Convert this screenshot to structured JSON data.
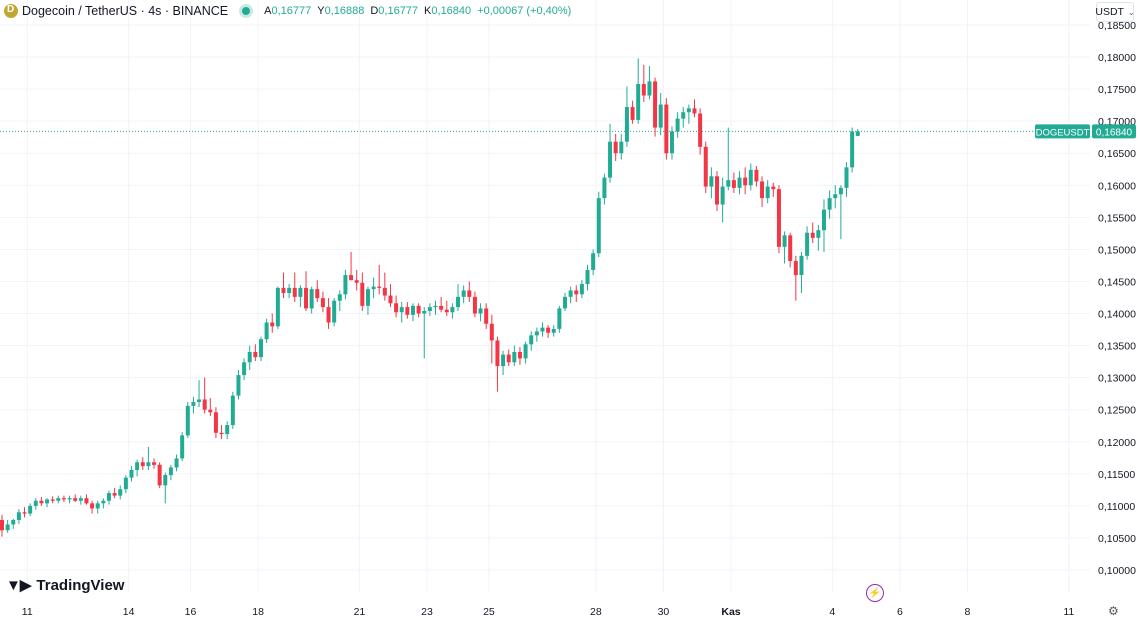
{
  "header": {
    "symbol": "Dogecoin / TetherUS · 4s · BINANCE",
    "ohlc": [
      {
        "k": "A",
        "v": "0,16777"
      },
      {
        "k": "Y",
        "v": "0,16888"
      },
      {
        "k": "D",
        "v": "0,16777"
      },
      {
        "k": "K",
        "v": "0,16840"
      },
      {
        "k": "",
        "v": "+0,00067 (+0,40%)"
      }
    ]
  },
  "currency_selector": "USDT",
  "brand": "TradingView",
  "price_tag": {
    "symbol": "DOGEUSDT",
    "price": "0,16840",
    "color": "#22ab94"
  },
  "colors": {
    "up": "#22ab94",
    "down": "#f23645",
    "grid": "#f0f3fa",
    "text": "#131722"
  },
  "chart_data": {
    "type": "candlestick",
    "ylim": [
      0.1,
      0.185
    ],
    "y_ticks": [
      "0,18500",
      "0,18000",
      "0,17500",
      "0,17000",
      "0,16500",
      "0,16000",
      "0,15500",
      "0,15000",
      "0,14500",
      "0,14000",
      "0,13500",
      "0,13000",
      "0,12500",
      "0,12000",
      "0,11500",
      "0,11000",
      "0,10500",
      "0,10000"
    ],
    "x_ticks": [
      {
        "label": "11",
        "idx": 2
      },
      {
        "label": "14",
        "idx": 20
      },
      {
        "label": "16",
        "idx": 31
      },
      {
        "label": "18",
        "idx": 43
      },
      {
        "label": "21",
        "idx": 61
      },
      {
        "label": "23",
        "idx": 73
      },
      {
        "label": "25",
        "idx": 84
      },
      {
        "label": "28",
        "idx": 103
      },
      {
        "label": "30",
        "idx": 115
      },
      {
        "label": "Kas",
        "idx": 127
      },
      {
        "label": "4",
        "idx": 145
      },
      {
        "label": "6",
        "idx": 157
      },
      {
        "label": "8",
        "idx": 169
      },
      {
        "label": "11",
        "idx": 187
      }
    ],
    "last_price": 0.1684,
    "candles": [
      {
        "o": 0.1078,
        "h": 0.1086,
        "l": 0.1052,
        "c": 0.1062
      },
      {
        "o": 0.1062,
        "h": 0.1078,
        "l": 0.1058,
        "c": 0.1071
      },
      {
        "o": 0.1071,
        "h": 0.108,
        "l": 0.1064,
        "c": 0.1078
      },
      {
        "o": 0.1078,
        "h": 0.1095,
        "l": 0.1072,
        "c": 0.109
      },
      {
        "o": 0.109,
        "h": 0.1098,
        "l": 0.1082,
        "c": 0.1088
      },
      {
        "o": 0.1088,
        "h": 0.1104,
        "l": 0.1084,
        "c": 0.11
      },
      {
        "o": 0.11,
        "h": 0.1112,
        "l": 0.1094,
        "c": 0.1108
      },
      {
        "o": 0.1108,
        "h": 0.1114,
        "l": 0.11,
        "c": 0.1104
      },
      {
        "o": 0.1104,
        "h": 0.1112,
        "l": 0.1098,
        "c": 0.111
      },
      {
        "o": 0.111,
        "h": 0.1115,
        "l": 0.1104,
        "c": 0.1108
      },
      {
        "o": 0.1108,
        "h": 0.1116,
        "l": 0.1104,
        "c": 0.1112
      },
      {
        "o": 0.1112,
        "h": 0.1116,
        "l": 0.1106,
        "c": 0.111
      },
      {
        "o": 0.111,
        "h": 0.1116,
        "l": 0.1104,
        "c": 0.1112
      },
      {
        "o": 0.1112,
        "h": 0.1118,
        "l": 0.1106,
        "c": 0.1108
      },
      {
        "o": 0.1108,
        "h": 0.1116,
        "l": 0.1102,
        "c": 0.1112
      },
      {
        "o": 0.1112,
        "h": 0.1118,
        "l": 0.1102,
        "c": 0.1104
      },
      {
        "o": 0.1104,
        "h": 0.1108,
        "l": 0.1088,
        "c": 0.1096
      },
      {
        "o": 0.1096,
        "h": 0.1108,
        "l": 0.1088,
        "c": 0.1104
      },
      {
        "o": 0.1104,
        "h": 0.1112,
        "l": 0.1096,
        "c": 0.1108
      },
      {
        "o": 0.1108,
        "h": 0.1124,
        "l": 0.1102,
        "c": 0.112
      },
      {
        "o": 0.112,
        "h": 0.1128,
        "l": 0.1112,
        "c": 0.1116
      },
      {
        "o": 0.1116,
        "h": 0.1132,
        "l": 0.111,
        "c": 0.1126
      },
      {
        "o": 0.1126,
        "h": 0.1148,
        "l": 0.112,
        "c": 0.1144
      },
      {
        "o": 0.1144,
        "h": 0.1162,
        "l": 0.1138,
        "c": 0.1156
      },
      {
        "o": 0.1156,
        "h": 0.1172,
        "l": 0.1146,
        "c": 0.1168
      },
      {
        "o": 0.1168,
        "h": 0.1176,
        "l": 0.1156,
        "c": 0.1162
      },
      {
        "o": 0.1162,
        "h": 0.1192,
        "l": 0.1156,
        "c": 0.1168
      },
      {
        "o": 0.1168,
        "h": 0.1174,
        "l": 0.1158,
        "c": 0.1164
      },
      {
        "o": 0.1164,
        "h": 0.1168,
        "l": 0.1128,
        "c": 0.1132
      },
      {
        "o": 0.1132,
        "h": 0.1152,
        "l": 0.1104,
        "c": 0.1148
      },
      {
        "o": 0.1148,
        "h": 0.1164,
        "l": 0.114,
        "c": 0.116
      },
      {
        "o": 0.116,
        "h": 0.118,
        "l": 0.1154,
        "c": 0.1174
      },
      {
        "o": 0.1174,
        "h": 0.1215,
        "l": 0.117,
        "c": 0.121
      },
      {
        "o": 0.121,
        "h": 0.1262,
        "l": 0.1206,
        "c": 0.1256
      },
      {
        "o": 0.1256,
        "h": 0.127,
        "l": 0.1244,
        "c": 0.1262
      },
      {
        "o": 0.1262,
        "h": 0.1296,
        "l": 0.1254,
        "c": 0.1266
      },
      {
        "o": 0.1266,
        "h": 0.13,
        "l": 0.1244,
        "c": 0.125
      },
      {
        "o": 0.125,
        "h": 0.1268,
        "l": 0.124,
        "c": 0.1246
      },
      {
        "o": 0.1246,
        "h": 0.1254,
        "l": 0.1206,
        "c": 0.1214
      },
      {
        "o": 0.1214,
        "h": 0.1226,
        "l": 0.1204,
        "c": 0.1212
      },
      {
        "o": 0.1212,
        "h": 0.1232,
        "l": 0.1204,
        "c": 0.1226
      },
      {
        "o": 0.1226,
        "h": 0.1278,
        "l": 0.122,
        "c": 0.1272
      },
      {
        "o": 0.1272,
        "h": 0.1312,
        "l": 0.1266,
        "c": 0.1304
      },
      {
        "o": 0.1304,
        "h": 0.133,
        "l": 0.1296,
        "c": 0.1324
      },
      {
        "o": 0.1324,
        "h": 0.135,
        "l": 0.1312,
        "c": 0.134
      },
      {
        "o": 0.134,
        "h": 0.1352,
        "l": 0.1326,
        "c": 0.1332
      },
      {
        "o": 0.1332,
        "h": 0.1364,
        "l": 0.1326,
        "c": 0.136
      },
      {
        "o": 0.136,
        "h": 0.1392,
        "l": 0.1354,
        "c": 0.1386
      },
      {
        "o": 0.1386,
        "h": 0.14,
        "l": 0.137,
        "c": 0.138
      },
      {
        "o": 0.138,
        "h": 0.1442,
        "l": 0.1376,
        "c": 0.144
      },
      {
        "o": 0.144,
        "h": 0.1464,
        "l": 0.1424,
        "c": 0.1432
      },
      {
        "o": 0.1432,
        "h": 0.1446,
        "l": 0.1424,
        "c": 0.144
      },
      {
        "o": 0.144,
        "h": 0.1464,
        "l": 0.1418,
        "c": 0.1426
      },
      {
        "o": 0.1426,
        "h": 0.1444,
        "l": 0.141,
        "c": 0.144
      },
      {
        "o": 0.144,
        "h": 0.1466,
        "l": 0.1404,
        "c": 0.1408
      },
      {
        "o": 0.1408,
        "h": 0.1442,
        "l": 0.14,
        "c": 0.1438
      },
      {
        "o": 0.1438,
        "h": 0.1452,
        "l": 0.1418,
        "c": 0.1424
      },
      {
        "o": 0.1424,
        "h": 0.1434,
        "l": 0.1402,
        "c": 0.141
      },
      {
        "o": 0.141,
        "h": 0.1424,
        "l": 0.1376,
        "c": 0.1386
      },
      {
        "o": 0.1386,
        "h": 0.1424,
        "l": 0.138,
        "c": 0.142
      },
      {
        "o": 0.142,
        "h": 0.1436,
        "l": 0.1404,
        "c": 0.143
      },
      {
        "o": 0.143,
        "h": 0.1468,
        "l": 0.1422,
        "c": 0.146
      },
      {
        "o": 0.146,
        "h": 0.1496,
        "l": 0.1452,
        "c": 0.1452
      },
      {
        "o": 0.1452,
        "h": 0.1468,
        "l": 0.1436,
        "c": 0.1448
      },
      {
        "o": 0.1448,
        "h": 0.1464,
        "l": 0.1404,
        "c": 0.1412
      },
      {
        "o": 0.1412,
        "h": 0.1442,
        "l": 0.1398,
        "c": 0.1438
      },
      {
        "o": 0.1438,
        "h": 0.1456,
        "l": 0.1424,
        "c": 0.1442
      },
      {
        "o": 0.1442,
        "h": 0.1476,
        "l": 0.143,
        "c": 0.144
      },
      {
        "o": 0.144,
        "h": 0.1464,
        "l": 0.142,
        "c": 0.1428
      },
      {
        "o": 0.1428,
        "h": 0.1446,
        "l": 0.141,
        "c": 0.1416
      },
      {
        "o": 0.1416,
        "h": 0.1428,
        "l": 0.1394,
        "c": 0.1402
      },
      {
        "o": 0.1402,
        "h": 0.1418,
        "l": 0.1386,
        "c": 0.141
      },
      {
        "o": 0.141,
        "h": 0.1418,
        "l": 0.1392,
        "c": 0.1398
      },
      {
        "o": 0.1398,
        "h": 0.1416,
        "l": 0.1388,
        "c": 0.1412
      },
      {
        "o": 0.1412,
        "h": 0.1416,
        "l": 0.1394,
        "c": 0.14
      },
      {
        "o": 0.14,
        "h": 0.141,
        "l": 0.133,
        "c": 0.1404
      },
      {
        "o": 0.1404,
        "h": 0.1416,
        "l": 0.1396,
        "c": 0.141
      },
      {
        "o": 0.141,
        "h": 0.142,
        "l": 0.1398,
        "c": 0.1412
      },
      {
        "o": 0.1412,
        "h": 0.1426,
        "l": 0.1402,
        "c": 0.1406
      },
      {
        "o": 0.1406,
        "h": 0.142,
        "l": 0.1396,
        "c": 0.1402
      },
      {
        "o": 0.1402,
        "h": 0.1416,
        "l": 0.1392,
        "c": 0.141
      },
      {
        "o": 0.141,
        "h": 0.1446,
        "l": 0.1404,
        "c": 0.1426
      },
      {
        "o": 0.1426,
        "h": 0.1444,
        "l": 0.1416,
        "c": 0.1436
      },
      {
        "o": 0.1436,
        "h": 0.145,
        "l": 0.1418,
        "c": 0.1426
      },
      {
        "o": 0.1426,
        "h": 0.1434,
        "l": 0.1394,
        "c": 0.14
      },
      {
        "o": 0.14,
        "h": 0.1416,
        "l": 0.1388,
        "c": 0.1408
      },
      {
        "o": 0.1408,
        "h": 0.1416,
        "l": 0.1376,
        "c": 0.1384
      },
      {
        "o": 0.1384,
        "h": 0.1398,
        "l": 0.1322,
        "c": 0.1358
      },
      {
        "o": 0.1358,
        "h": 0.1364,
        "l": 0.1278,
        "c": 0.1318
      },
      {
        "o": 0.1318,
        "h": 0.1342,
        "l": 0.1304,
        "c": 0.1336
      },
      {
        "o": 0.1336,
        "h": 0.1344,
        "l": 0.1318,
        "c": 0.1324
      },
      {
        "o": 0.1324,
        "h": 0.135,
        "l": 0.1318,
        "c": 0.134
      },
      {
        "o": 0.134,
        "h": 0.1348,
        "l": 0.132,
        "c": 0.133
      },
      {
        "o": 0.133,
        "h": 0.1356,
        "l": 0.1322,
        "c": 0.1352
      },
      {
        "o": 0.1352,
        "h": 0.1372,
        "l": 0.1342,
        "c": 0.1366
      },
      {
        "o": 0.1366,
        "h": 0.1378,
        "l": 0.1356,
        "c": 0.1372
      },
      {
        "o": 0.1372,
        "h": 0.1386,
        "l": 0.1364,
        "c": 0.1378
      },
      {
        "o": 0.1378,
        "h": 0.1382,
        "l": 0.1362,
        "c": 0.137
      },
      {
        "o": 0.137,
        "h": 0.1382,
        "l": 0.1364,
        "c": 0.1376
      },
      {
        "o": 0.1376,
        "h": 0.1412,
        "l": 0.137,
        "c": 0.1408
      },
      {
        "o": 0.1408,
        "h": 0.1432,
        "l": 0.1404,
        "c": 0.1426
      },
      {
        "o": 0.1426,
        "h": 0.1442,
        "l": 0.1416,
        "c": 0.1436
      },
      {
        "o": 0.1436,
        "h": 0.1444,
        "l": 0.1418,
        "c": 0.143
      },
      {
        "o": 0.143,
        "h": 0.1452,
        "l": 0.1424,
        "c": 0.1446
      },
      {
        "o": 0.1446,
        "h": 0.1476,
        "l": 0.1436,
        "c": 0.1468
      },
      {
        "o": 0.1468,
        "h": 0.15,
        "l": 0.146,
        "c": 0.1494
      },
      {
        "o": 0.1494,
        "h": 0.159,
        "l": 0.1488,
        "c": 0.158
      },
      {
        "o": 0.158,
        "h": 0.1618,
        "l": 0.157,
        "c": 0.1612
      },
      {
        "o": 0.1612,
        "h": 0.1696,
        "l": 0.1604,
        "c": 0.1668
      },
      {
        "o": 0.1668,
        "h": 0.168,
        "l": 0.1638,
        "c": 0.165
      },
      {
        "o": 0.165,
        "h": 0.168,
        "l": 0.164,
        "c": 0.1668
      },
      {
        "o": 0.1668,
        "h": 0.1754,
        "l": 0.166,
        "c": 0.1722
      },
      {
        "o": 0.1722,
        "h": 0.1732,
        "l": 0.1696,
        "c": 0.1702
      },
      {
        "o": 0.1702,
        "h": 0.1798,
        "l": 0.1696,
        "c": 0.1758
      },
      {
        "o": 0.1758,
        "h": 0.1788,
        "l": 0.173,
        "c": 0.174
      },
      {
        "o": 0.174,
        "h": 0.1786,
        "l": 0.1734,
        "c": 0.1762
      },
      {
        "o": 0.1762,
        "h": 0.1768,
        "l": 0.1676,
        "c": 0.169
      },
      {
        "o": 0.169,
        "h": 0.1744,
        "l": 0.1678,
        "c": 0.1726
      },
      {
        "o": 0.1726,
        "h": 0.1736,
        "l": 0.164,
        "c": 0.165
      },
      {
        "o": 0.165,
        "h": 0.1692,
        "l": 0.164,
        "c": 0.1684
      },
      {
        "o": 0.1684,
        "h": 0.1714,
        "l": 0.1674,
        "c": 0.1704
      },
      {
        "o": 0.1704,
        "h": 0.1722,
        "l": 0.169,
        "c": 0.1714
      },
      {
        "o": 0.1714,
        "h": 0.1726,
        "l": 0.1696,
        "c": 0.172
      },
      {
        "o": 0.172,
        "h": 0.1734,
        "l": 0.1706,
        "c": 0.1712
      },
      {
        "o": 0.1712,
        "h": 0.172,
        "l": 0.1648,
        "c": 0.166
      },
      {
        "o": 0.166,
        "h": 0.1668,
        "l": 0.1588,
        "c": 0.1598
      },
      {
        "o": 0.1598,
        "h": 0.1628,
        "l": 0.158,
        "c": 0.1614
      },
      {
        "o": 0.1614,
        "h": 0.1622,
        "l": 0.156,
        "c": 0.157
      },
      {
        "o": 0.157,
        "h": 0.1612,
        "l": 0.1542,
        "c": 0.1598
      },
      {
        "o": 0.1598,
        "h": 0.169,
        "l": 0.1592,
        "c": 0.1608
      },
      {
        "o": 0.1608,
        "h": 0.162,
        "l": 0.1588,
        "c": 0.1596
      },
      {
        "o": 0.1596,
        "h": 0.1622,
        "l": 0.1586,
        "c": 0.1612
      },
      {
        "o": 0.1612,
        "h": 0.1628,
        "l": 0.1586,
        "c": 0.16
      },
      {
        "o": 0.16,
        "h": 0.1634,
        "l": 0.1592,
        "c": 0.1624
      },
      {
        "o": 0.1624,
        "h": 0.163,
        "l": 0.1598,
        "c": 0.1606
      },
      {
        "o": 0.1606,
        "h": 0.1614,
        "l": 0.1566,
        "c": 0.158
      },
      {
        "o": 0.158,
        "h": 0.1608,
        "l": 0.1572,
        "c": 0.1598
      },
      {
        "o": 0.1598,
        "h": 0.1604,
        "l": 0.1582,
        "c": 0.1594
      },
      {
        "o": 0.1594,
        "h": 0.16,
        "l": 0.1494,
        "c": 0.1504
      },
      {
        "o": 0.1504,
        "h": 0.1528,
        "l": 0.1478,
        "c": 0.1522
      },
      {
        "o": 0.1522,
        "h": 0.1526,
        "l": 0.1472,
        "c": 0.1482
      },
      {
        "o": 0.1482,
        "h": 0.149,
        "l": 0.142,
        "c": 0.146
      },
      {
        "o": 0.146,
        "h": 0.1496,
        "l": 0.1432,
        "c": 0.149
      },
      {
        "o": 0.149,
        "h": 0.1536,
        "l": 0.1484,
        "c": 0.1526
      },
      {
        "o": 0.1526,
        "h": 0.1542,
        "l": 0.151,
        "c": 0.1518
      },
      {
        "o": 0.1518,
        "h": 0.1538,
        "l": 0.1498,
        "c": 0.153
      },
      {
        "o": 0.153,
        "h": 0.1578,
        "l": 0.1496,
        "c": 0.1562
      },
      {
        "o": 0.1562,
        "h": 0.1592,
        "l": 0.1548,
        "c": 0.158
      },
      {
        "o": 0.158,
        "h": 0.16,
        "l": 0.1564,
        "c": 0.1586
      },
      {
        "o": 0.1586,
        "h": 0.16,
        "l": 0.1516,
        "c": 0.1596
      },
      {
        "o": 0.1596,
        "h": 0.1636,
        "l": 0.1582,
        "c": 0.1628
      },
      {
        "o": 0.1628,
        "h": 0.169,
        "l": 0.162,
        "c": 0.1684
      },
      {
        "o": 0.1677,
        "h": 0.1688,
        "l": 0.1677,
        "c": 0.1684
      }
    ]
  }
}
